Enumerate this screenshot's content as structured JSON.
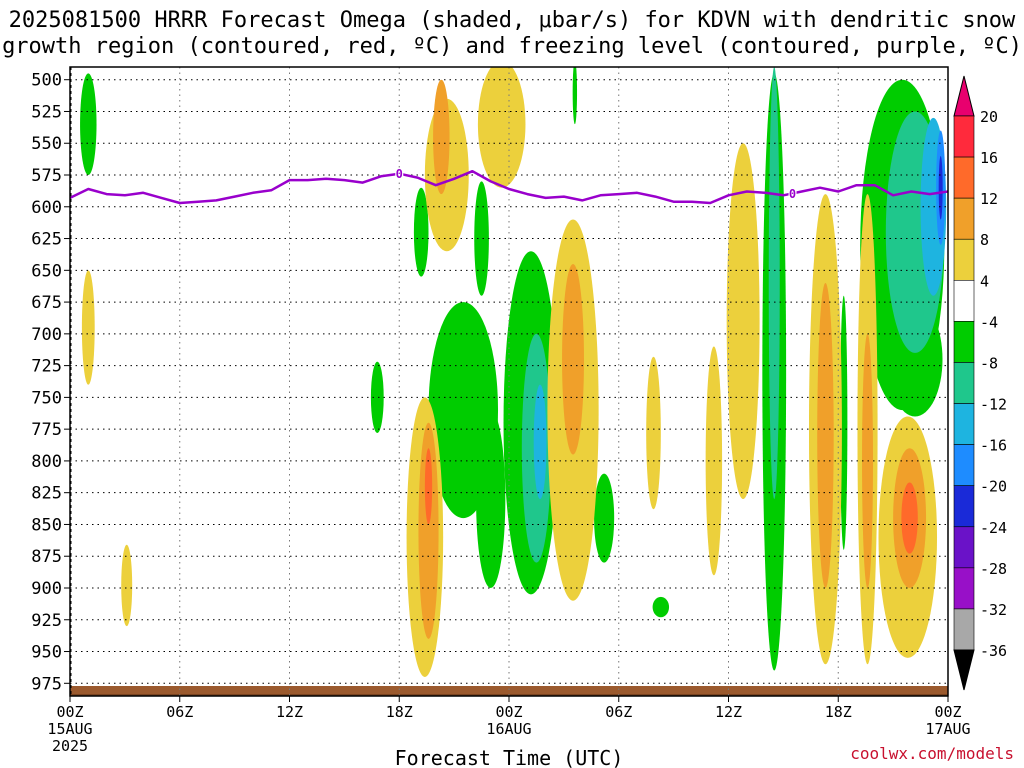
{
  "title_line1": "2025081500 HRRR Forecast Omega (shaded, μbar/s) for KDVN with dendritic snow",
  "title_line2": "growth region (contoured, red, ºC) and freezing level (contoured, purple, ºC)",
  "credit": "coolwx.com/models",
  "chart_data": {
    "type": "time-height cross-section",
    "xlabel": "Forecast Time (UTC)",
    "ylabel": "",
    "y_ticks": [
      500,
      525,
      550,
      575,
      600,
      625,
      650,
      675,
      700,
      725,
      750,
      775,
      800,
      825,
      850,
      875,
      900,
      925,
      950,
      975
    ],
    "ylim": [
      490,
      985
    ],
    "y_inverted": true,
    "xlim_hours": [
      0,
      48
    ],
    "x_ticks": [
      {
        "hour": 0,
        "label": "00Z",
        "sub1": "15AUG",
        "sub2": "2025"
      },
      {
        "hour": 6,
        "label": "06Z"
      },
      {
        "hour": 12,
        "label": "12Z"
      },
      {
        "hour": 18,
        "label": "18Z"
      },
      {
        "hour": 24,
        "label": "00Z",
        "sub1": "16AUG"
      },
      {
        "hour": 30,
        "label": "06Z"
      },
      {
        "hour": 36,
        "label": "12Z"
      },
      {
        "hour": 42,
        "label": "18Z"
      },
      {
        "hour": 48,
        "label": "00Z",
        "sub1": "17AUG"
      }
    ],
    "grid": "dotted",
    "colorbar": {
      "levels": [
        "20",
        "16",
        "12",
        "8",
        "4",
        "-4",
        "-8",
        "-12",
        "-16",
        "-20",
        "-24",
        "-28",
        "-32",
        "-36"
      ],
      "colors": [
        "#e8006e",
        "#ff2a3c",
        "#ff6a2a",
        "#f0a02a",
        "#ecd03c",
        "#ffffff",
        "#00cc00",
        "#1fc78c",
        "#1eb4e0",
        "#1e8cff",
        "#1a2ad8",
        "#6a12c8",
        "#9810c8",
        "#a8a8a8",
        "#000000"
      ]
    },
    "freezing_level": {
      "color": "#9900cc",
      "label": "0",
      "points": [
        [
          0,
          593
        ],
        [
          1,
          586
        ],
        [
          2,
          590
        ],
        [
          3,
          591
        ],
        [
          4,
          589
        ],
        [
          5,
          593
        ],
        [
          6,
          597
        ],
        [
          7,
          596
        ],
        [
          8,
          595
        ],
        [
          9,
          592
        ],
        [
          10,
          589
        ],
        [
          11,
          587
        ],
        [
          12,
          579
        ],
        [
          13,
          579
        ],
        [
          14,
          578
        ],
        [
          15,
          579
        ],
        [
          16,
          581
        ],
        [
          17,
          576
        ],
        [
          18,
          574
        ],
        [
          19,
          577
        ],
        [
          20,
          583
        ],
        [
          21,
          578
        ],
        [
          22,
          572
        ],
        [
          23,
          580
        ],
        [
          24,
          586
        ],
        [
          25,
          590
        ],
        [
          26,
          593
        ],
        [
          27,
          592
        ],
        [
          28,
          595
        ],
        [
          29,
          591
        ],
        [
          30,
          590
        ],
        [
          31,
          589
        ],
        [
          32,
          592
        ],
        [
          33,
          596
        ],
        [
          34,
          596
        ],
        [
          35,
          597
        ],
        [
          36,
          591
        ],
        [
          37,
          588
        ],
        [
          38,
          589
        ],
        [
          39,
          591
        ],
        [
          40,
          588
        ],
        [
          41,
          585
        ],
        [
          42,
          588
        ],
        [
          43,
          583
        ],
        [
          44,
          583
        ],
        [
          45,
          591
        ],
        [
          46,
          588
        ],
        [
          47,
          590
        ],
        [
          48,
          588
        ]
      ],
      "label_hours": [
        18,
        39.5
      ]
    },
    "omega_areas": [
      {
        "level": "-4",
        "t": 1,
        "p": 535,
        "dt": 0.45,
        "dp": 40
      },
      {
        "level": "-4",
        "t": 19.2,
        "p": 620,
        "dt": 0.4,
        "dp": 35
      },
      {
        "level": "-4",
        "t": 16.8,
        "p": 750,
        "dt": 0.35,
        "dp": 28
      },
      {
        "level": "-4",
        "t": 21.5,
        "p": 760,
        "dt": 1.9,
        "dp": 85
      },
      {
        "level": "-4",
        "t": 25.2,
        "p": 770,
        "dt": 1.5,
        "dp": 135
      },
      {
        "level": "-4",
        "t": 23,
        "p": 830,
        "dt": 0.8,
        "dp": 70
      },
      {
        "level": "-4",
        "t": 22.5,
        "p": 625,
        "dt": 0.4,
        "dp": 45
      },
      {
        "level": "-4",
        "t": 29.2,
        "p": 845,
        "dt": 0.55,
        "dp": 35
      },
      {
        "level": "-4",
        "t": 32.3,
        "p": 915,
        "dt": 0.45,
        "dp": 8
      },
      {
        "level": "-4",
        "t": 27.6,
        "p": 510,
        "dt": 0.12,
        "dp": 25
      },
      {
        "level": "-4",
        "t": 38.5,
        "p": 730,
        "dt": 0.65,
        "dp": 235
      },
      {
        "level": "-4",
        "t": 42.3,
        "p": 770,
        "dt": 0.2,
        "dp": 100
      },
      {
        "level": "-4",
        "t": 45.5,
        "p": 630,
        "dt": 2.3,
        "dp": 130
      },
      {
        "level": "-4",
        "t": 46.2,
        "p": 720,
        "dt": 1.5,
        "dp": 45
      },
      {
        "level": "-8",
        "t": 25.5,
        "p": 790,
        "dt": 0.8,
        "dp": 90
      },
      {
        "level": "-8",
        "t": 38.5,
        "p": 660,
        "dt": 0.3,
        "dp": 170
      },
      {
        "level": "-8",
        "t": 46.2,
        "p": 620,
        "dt": 1.6,
        "dp": 95
      },
      {
        "level": "-12",
        "t": 25.7,
        "p": 785,
        "dt": 0.35,
        "dp": 45
      },
      {
        "level": "-12",
        "t": 47.2,
        "p": 600,
        "dt": 0.7,
        "dp": 70
      },
      {
        "level": "-16",
        "t": 47.6,
        "p": 585,
        "dt": 0.25,
        "dp": 45
      },
      {
        "level": "-20",
        "t": 47.6,
        "p": 585,
        "dt": 0.1,
        "dp": 25
      },
      {
        "level": "4",
        "t": 1,
        "p": 695,
        "dt": 0.35,
        "dp": 45
      },
      {
        "level": "4",
        "t": 3.1,
        "p": 898,
        "dt": 0.3,
        "dp": 32
      },
      {
        "level": "4",
        "t": 20.6,
        "p": 575,
        "dt": 1.2,
        "dp": 60
      },
      {
        "level": "4",
        "t": 23.6,
        "p": 535,
        "dt": 1.3,
        "dp": 50
      },
      {
        "level": "4",
        "t": 19.4,
        "p": 860,
        "dt": 1.0,
        "dp": 110
      },
      {
        "level": "4",
        "t": 27.5,
        "p": 760,
        "dt": 1.4,
        "dp": 150
      },
      {
        "level": "4",
        "t": 31.9,
        "p": 778,
        "dt": 0.4,
        "dp": 60
      },
      {
        "level": "4",
        "t": 35.2,
        "p": 800,
        "dt": 0.45,
        "dp": 90
      },
      {
        "level": "4",
        "t": 36.8,
        "p": 690,
        "dt": 0.9,
        "dp": 140
      },
      {
        "level": "4",
        "t": 41.3,
        "p": 775,
        "dt": 0.9,
        "dp": 185
      },
      {
        "level": "4",
        "t": 43.6,
        "p": 775,
        "dt": 0.55,
        "dp": 185
      },
      {
        "level": "4",
        "t": 45.8,
        "p": 860,
        "dt": 1.6,
        "dp": 95
      },
      {
        "level": "8",
        "t": 19.6,
        "p": 855,
        "dt": 0.55,
        "dp": 85
      },
      {
        "level": "8",
        "t": 27.5,
        "p": 720,
        "dt": 0.6,
        "dp": 75
      },
      {
        "level": "8",
        "t": 20.3,
        "p": 545,
        "dt": 0.45,
        "dp": 45
      },
      {
        "level": "8",
        "t": 41.3,
        "p": 780,
        "dt": 0.45,
        "dp": 120
      },
      {
        "level": "8",
        "t": 43.6,
        "p": 800,
        "dt": 0.3,
        "dp": 100
      },
      {
        "level": "8",
        "t": 45.9,
        "p": 845,
        "dt": 0.9,
        "dp": 55
      },
      {
        "level": "12",
        "t": 45.9,
        "p": 845,
        "dt": 0.45,
        "dp": 28
      },
      {
        "level": "12",
        "t": 19.6,
        "p": 820,
        "dt": 0.2,
        "dp": 30
      }
    ]
  }
}
